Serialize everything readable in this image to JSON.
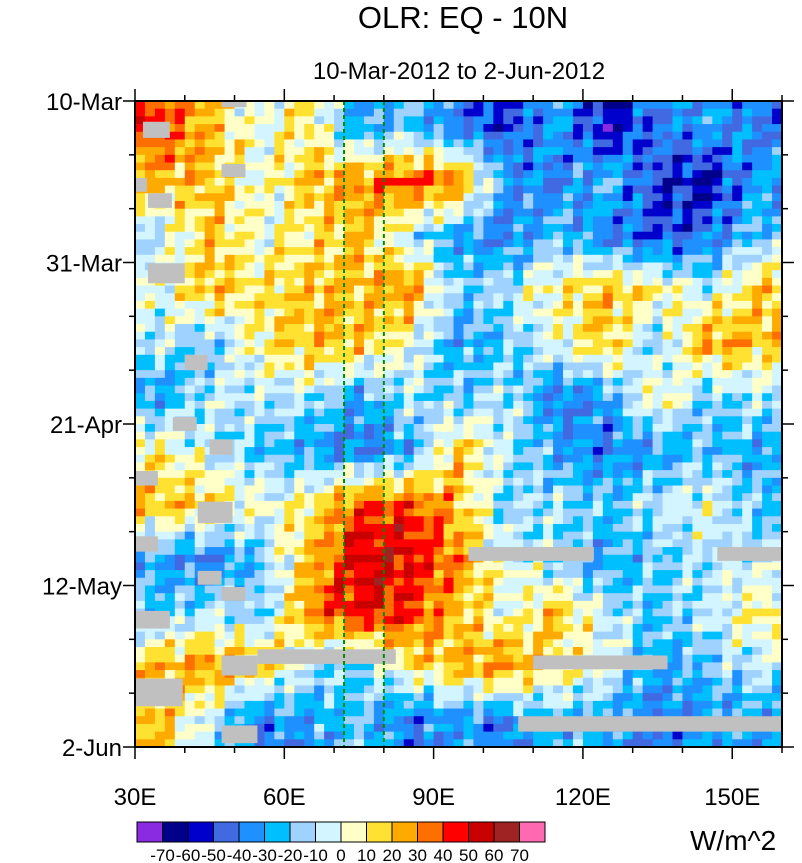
{
  "chart_data": {
    "type": "heatmap",
    "title": "OLR: EQ - 10N",
    "subtitle": "10-Mar-2012 to 2-Jun-2012",
    "xlabel": "",
    "ylabel": "",
    "xlim": [
      30,
      160
    ],
    "ylim_days": [
      0,
      84
    ],
    "x_ticks": [
      {
        "value": 30,
        "label": "30E"
      },
      {
        "value": 60,
        "label": "60E"
      },
      {
        "value": 90,
        "label": "90E"
      },
      {
        "value": 120,
        "label": "120E"
      },
      {
        "value": 150,
        "label": "150E"
      }
    ],
    "y_ticks": [
      {
        "day": 0,
        "label": "10-Mar"
      },
      {
        "day": 21,
        "label": "31-Mar"
      },
      {
        "day": 42,
        "label": "21-Apr"
      },
      {
        "day": 63,
        "label": "12-May"
      },
      {
        "day": 84,
        "label": "2-Jun"
      }
    ],
    "grid_lon_centers": [
      35,
      45,
      55,
      65,
      75,
      85,
      95,
      105,
      115,
      125,
      135,
      145,
      155
    ],
    "grid_day_centers": [
      3.5,
      10.5,
      17.5,
      24.5,
      31.5,
      38.5,
      45.5,
      52.5,
      59.5,
      66.5,
      73.5,
      80.5
    ],
    "values": [
      [
        40,
        20,
        0,
        10,
        -30,
        -20,
        -40,
        -50,
        -30,
        -60,
        -40,
        -30,
        -40
      ],
      [
        20,
        20,
        0,
        20,
        30,
        40,
        30,
        -30,
        -40,
        -20,
        -50,
        -60,
        -30
      ],
      [
        -10,
        20,
        0,
        10,
        20,
        -10,
        -30,
        -40,
        -20,
        -40,
        -50,
        -40,
        -20
      ],
      [
        0,
        20,
        10,
        20,
        20,
        30,
        -20,
        -10,
        10,
        20,
        10,
        -10,
        20
      ],
      [
        -10,
        -20,
        10,
        20,
        20,
        0,
        -30,
        -20,
        0,
        20,
        -20,
        30,
        20
      ],
      [
        -30,
        -10,
        -10,
        -10,
        -30,
        -10,
        -20,
        -10,
        -40,
        -30,
        10,
        -20,
        -10
      ],
      [
        10,
        -10,
        -20,
        -30,
        -40,
        -30,
        20,
        -10,
        -30,
        -40,
        -30,
        -20,
        -30
      ],
      [
        20,
        20,
        0,
        10,
        40,
        40,
        20,
        -20,
        -10,
        -20,
        -10,
        0,
        -20
      ],
      [
        -30,
        -40,
        -20,
        20,
        50,
        50,
        30,
        0,
        -20,
        -30,
        -20,
        -10,
        -10
      ],
      [
        -20,
        -10,
        -20,
        30,
        50,
        40,
        20,
        0,
        20,
        -10,
        -20,
        -10,
        10
      ],
      [
        20,
        30,
        20,
        -10,
        -20,
        10,
        20,
        30,
        10,
        0,
        -30,
        -20,
        -10
      ],
      [
        20,
        -10,
        -40,
        -30,
        -20,
        -40,
        -30,
        -40,
        -20,
        -30,
        -40,
        -30,
        -30
      ]
    ],
    "reference_lines_lon": [
      72,
      80
    ],
    "missing_data": [
      [
        47.4,
        52.4,
        0,
        0.8
      ],
      [
        31.6,
        37,
        2.7,
        4.8
      ],
      [
        47.4,
        52.2,
        8.2,
        9.9
      ],
      [
        30,
        32.4,
        10,
        11.8
      ],
      [
        32.6,
        37.4,
        12,
        13.9
      ],
      [
        32.6,
        40,
        21.1,
        23.7
      ],
      [
        40,
        44.6,
        33,
        35
      ],
      [
        37.6,
        42.4,
        41.1,
        42.9
      ],
      [
        45,
        49.6,
        44,
        46
      ],
      [
        30,
        34.6,
        48.1,
        50
      ],
      [
        42.6,
        49.6,
        52.1,
        54.9
      ],
      [
        30,
        34.6,
        56.6,
        58.6
      ],
      [
        42.6,
        47.4,
        61.1,
        62.9
      ],
      [
        47.4,
        52.2,
        63.2,
        65
      ],
      [
        30,
        37,
        66.3,
        68.6
      ],
      [
        47.4,
        54.6,
        72.1,
        74.7
      ],
      [
        54.6,
        82.4,
        71.3,
        73.2
      ],
      [
        30,
        39.6,
        75.1,
        78.7
      ],
      [
        47.4,
        54.6,
        81.2,
        83.5
      ],
      [
        97,
        122.2,
        58,
        59.8
      ],
      [
        147,
        160,
        58,
        59.8
      ],
      [
        110,
        137,
        72.1,
        73.9
      ],
      [
        107,
        160,
        80.0,
        82
      ]
    ],
    "colorbar": {
      "unit": "W/m^2",
      "levels": [
        "-70",
        "-60",
        "-50",
        "-40",
        "-30",
        "-20",
        "-10",
        "0",
        "10",
        "20",
        "30",
        "40",
        "50",
        "60",
        "70"
      ],
      "colors": [
        "#8a2be2",
        "#00008b",
        "#0000cd",
        "#4169e1",
        "#1e90ff",
        "#00bfff",
        "#a0d2ff",
        "#d2f5ff",
        "#ffffc8",
        "#ffe132",
        "#ffaa00",
        "#ff6e00",
        "#ff0000",
        "#c80000",
        "#a02323",
        "#ff69b4"
      ]
    },
    "missing_color": "#c0c0c0",
    "reference_line_color": "#008c00"
  }
}
